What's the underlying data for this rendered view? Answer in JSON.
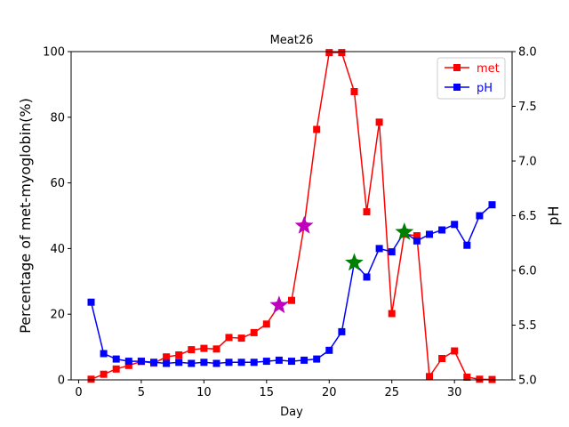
{
  "chart_data": {
    "type": "line",
    "title": "Meat26",
    "xlabel": "Day",
    "ylabel_left": "Percentage of met-myoglobin(%)",
    "ylabel_right": "pH",
    "xlim": [
      -0.6,
      34.6
    ],
    "ylim_left": [
      0,
      100
    ],
    "ylim_right": [
      5.0,
      8.0
    ],
    "x_ticks": [
      0,
      5,
      10,
      15,
      20,
      25,
      30
    ],
    "y_left_ticks": [
      0,
      20,
      40,
      60,
      80,
      100
    ],
    "y_right_ticks": [
      "5.0",
      "5.5",
      "6.0",
      "6.5",
      "7.0",
      "7.5",
      "8.0"
    ],
    "grid": false,
    "legend_position": "upper right",
    "series": [
      {
        "name": "met",
        "axis": "left",
        "color": "#ff0000",
        "marker": "square",
        "x": [
          1,
          2,
          3,
          4,
          5,
          6,
          7,
          8,
          9,
          10,
          11,
          12,
          13,
          14,
          15,
          16,
          17,
          18,
          19,
          20,
          21,
          22,
          23,
          24,
          25,
          26,
          27,
          28,
          29,
          30,
          31,
          32,
          33
        ],
        "values": [
          0.2,
          1.7,
          3.3,
          4.4,
          5.6,
          5.1,
          7.0,
          7.6,
          9.2,
          9.6,
          9.4,
          12.9,
          12.7,
          14.4,
          17.0,
          22.7,
          24.2,
          46.9,
          76.3,
          99.7,
          99.7,
          87.8,
          51.2,
          78.5,
          20.2,
          44.4,
          43.9,
          1.0,
          6.5,
          8.8,
          0.8,
          0.2,
          0.1
        ]
      },
      {
        "name": "pH",
        "axis": "right",
        "color": "#0000ff",
        "marker": "square",
        "x": [
          1,
          2,
          3,
          4,
          5,
          6,
          7,
          8,
          9,
          10,
          11,
          12,
          13,
          14,
          15,
          16,
          17,
          18,
          19,
          20,
          21,
          22,
          23,
          24,
          25,
          26,
          27,
          28,
          29,
          30,
          31,
          32,
          33
        ],
        "values": [
          5.71,
          5.24,
          5.19,
          5.17,
          5.17,
          5.16,
          5.15,
          5.16,
          5.15,
          5.16,
          5.15,
          5.16,
          5.16,
          5.16,
          5.17,
          5.18,
          5.17,
          5.18,
          5.19,
          5.27,
          5.44,
          6.07,
          5.94,
          6.2,
          6.17,
          6.35,
          6.27,
          6.33,
          6.37,
          6.42,
          6.23,
          6.5,
          6.6
        ]
      }
    ],
    "star_markers": [
      {
        "x": 16,
        "y": 22.7,
        "axis": "left",
        "color": "#bf00bf"
      },
      {
        "x": 18,
        "y": 46.9,
        "axis": "left",
        "color": "#bf00bf"
      },
      {
        "x": 22,
        "y": 6.07,
        "axis": "right",
        "color": "#008000"
      },
      {
        "x": 26,
        "y": 6.35,
        "axis": "right",
        "color": "#008000"
      }
    ]
  }
}
